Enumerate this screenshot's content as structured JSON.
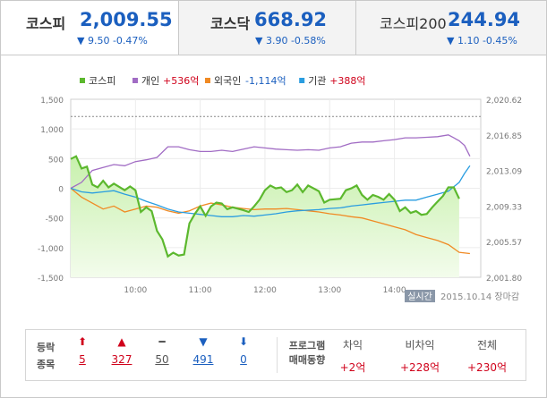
{
  "tabs": [
    {
      "name": "코스피",
      "value": "2,009.55",
      "change": "▼ 9.50 -0.47%"
    },
    {
      "name": "코스닥",
      "value": "668.92",
      "change": "▼ 3.90 -0.58%"
    },
    {
      "name": "코스피200",
      "value": "244.94",
      "change": "▼ 1.10 -0.45%"
    }
  ],
  "legend": [
    {
      "name": "코스피",
      "amount": "",
      "color": "#5cb82e"
    },
    {
      "name": "개인",
      "amount": "+536억",
      "color": "#a16cc4"
    },
    {
      "name": "외국인",
      "amount": "-1,114억",
      "color": "#f08a24"
    },
    {
      "name": "기관",
      "amount": "+388억",
      "color": "#2a9de0"
    }
  ],
  "status": {
    "badge": "실시간",
    "date": "2015.10.14",
    "session": "장마감"
  },
  "updown": {
    "label_line1": "등락",
    "label_line2": "종목",
    "items": [
      {
        "arrow": "⬆",
        "count": "5",
        "color": "#d0021b"
      },
      {
        "arrow": "▲",
        "count": "327",
        "color": "#d0021b"
      },
      {
        "arrow": "━",
        "count": "50",
        "color": "#555"
      },
      {
        "arrow": "▼",
        "count": "491",
        "color": "#1b5fbf"
      },
      {
        "arrow": "⬇",
        "count": "0",
        "color": "#1b5fbf"
      }
    ]
  },
  "program": {
    "label_line1": "프로그램",
    "label_line2": "매매동향",
    "cols": [
      {
        "head": "차익",
        "value": "+2억"
      },
      {
        "head": "비차익",
        "value": "+228억"
      },
      {
        "head": "전체",
        "value": "+230억"
      }
    ]
  },
  "chart_data": {
    "type": "line",
    "x_ticks": [
      "10:00",
      "11:00",
      "12:00",
      "13:00",
      "14:00"
    ],
    "y_left_ticks": [
      "1,500",
      "1,000",
      "500",
      "0",
      "-500",
      "-1,000",
      "-1,500"
    ],
    "y_left_range": [
      -1500,
      1500
    ],
    "y_right_ticks": [
      "2,020.62",
      "2,016.85",
      "2,013.09",
      "2,009.33",
      "2,005.57",
      "2,001.80"
    ],
    "y_right_range": [
      2001.8,
      2020.62
    ],
    "reference_line": 2018.8,
    "x_range_minutes": [
      0,
      380
    ],
    "series": [
      {
        "name": "코스피",
        "axis": "right",
        "points": [
          [
            0,
            2014.3
          ],
          [
            5,
            2014.6
          ],
          [
            10,
            2013.3
          ],
          [
            15,
            2013.5
          ],
          [
            20,
            2011.6
          ],
          [
            25,
            2011.3
          ],
          [
            30,
            2012.0
          ],
          [
            35,
            2011.3
          ],
          [
            40,
            2011.7
          ],
          [
            50,
            2011.0
          ],
          [
            55,
            2011.4
          ],
          [
            60,
            2011.0
          ],
          [
            65,
            2008.7
          ],
          [
            70,
            2009.2
          ],
          [
            75,
            2008.8
          ],
          [
            80,
            2006.7
          ],
          [
            85,
            2005.8
          ],
          [
            90,
            2004.0
          ],
          [
            95,
            2004.4
          ],
          [
            100,
            2004.1
          ],
          [
            105,
            2004.2
          ],
          [
            110,
            2007.5
          ],
          [
            115,
            2008.5
          ],
          [
            120,
            2009.3
          ],
          [
            125,
            2008.3
          ],
          [
            130,
            2009.3
          ],
          [
            135,
            2009.7
          ],
          [
            140,
            2009.6
          ],
          [
            145,
            2009.0
          ],
          [
            150,
            2009.2
          ],
          [
            160,
            2008.9
          ],
          [
            165,
            2008.7
          ],
          [
            170,
            2009.3
          ],
          [
            175,
            2010.0
          ],
          [
            180,
            2011.0
          ],
          [
            185,
            2011.5
          ],
          [
            190,
            2011.2
          ],
          [
            195,
            2011.3
          ],
          [
            200,
            2010.8
          ],
          [
            205,
            2011.0
          ],
          [
            210,
            2011.6
          ],
          [
            215,
            2010.8
          ],
          [
            220,
            2011.5
          ],
          [
            230,
            2010.9
          ],
          [
            235,
            2009.7
          ],
          [
            240,
            2010.0
          ],
          [
            250,
            2010.1
          ],
          [
            255,
            2011.0
          ],
          [
            260,
            2011.2
          ],
          [
            265,
            2011.5
          ],
          [
            270,
            2010.5
          ],
          [
            275,
            2010.0
          ],
          [
            280,
            2010.5
          ],
          [
            285,
            2010.3
          ],
          [
            290,
            2010.0
          ],
          [
            295,
            2010.6
          ],
          [
            300,
            2010.0
          ],
          [
            305,
            2008.8
          ],
          [
            310,
            2009.2
          ],
          [
            315,
            2008.6
          ],
          [
            320,
            2008.8
          ],
          [
            325,
            2008.4
          ],
          [
            330,
            2008.5
          ],
          [
            335,
            2009.2
          ],
          [
            340,
            2009.8
          ],
          [
            345,
            2010.4
          ],
          [
            350,
            2011.3
          ],
          [
            355,
            2011.3
          ],
          [
            360,
            2010.1
          ]
        ]
      },
      {
        "name": "개인",
        "axis": "left",
        "points": [
          [
            0,
            0
          ],
          [
            10,
            100
          ],
          [
            20,
            300
          ],
          [
            30,
            350
          ],
          [
            40,
            400
          ],
          [
            50,
            380
          ],
          [
            60,
            450
          ],
          [
            70,
            480
          ],
          [
            80,
            520
          ],
          [
            90,
            700
          ],
          [
            100,
            700
          ],
          [
            110,
            650
          ],
          [
            120,
            620
          ],
          [
            130,
            620
          ],
          [
            140,
            640
          ],
          [
            150,
            620
          ],
          [
            160,
            660
          ],
          [
            170,
            700
          ],
          [
            180,
            680
          ],
          [
            190,
            660
          ],
          [
            200,
            650
          ],
          [
            210,
            640
          ],
          [
            220,
            650
          ],
          [
            230,
            640
          ],
          [
            240,
            680
          ],
          [
            250,
            700
          ],
          [
            260,
            760
          ],
          [
            270,
            780
          ],
          [
            280,
            780
          ],
          [
            290,
            800
          ],
          [
            300,
            820
          ],
          [
            310,
            850
          ],
          [
            320,
            850
          ],
          [
            330,
            860
          ],
          [
            340,
            870
          ],
          [
            350,
            900
          ],
          [
            355,
            850
          ],
          [
            360,
            800
          ],
          [
            365,
            720
          ],
          [
            370,
            540
          ]
        ]
      },
      {
        "name": "외국인",
        "axis": "left",
        "points": [
          [
            0,
            0
          ],
          [
            10,
            -150
          ],
          [
            20,
            -250
          ],
          [
            30,
            -350
          ],
          [
            40,
            -300
          ],
          [
            50,
            -400
          ],
          [
            60,
            -350
          ],
          [
            70,
            -300
          ],
          [
            80,
            -320
          ],
          [
            90,
            -380
          ],
          [
            100,
            -420
          ],
          [
            110,
            -380
          ],
          [
            120,
            -300
          ],
          [
            130,
            -250
          ],
          [
            140,
            -280
          ],
          [
            150,
            -320
          ],
          [
            160,
            -340
          ],
          [
            170,
            -360
          ],
          [
            180,
            -350
          ],
          [
            190,
            -350
          ],
          [
            200,
            -340
          ],
          [
            210,
            -360
          ],
          [
            220,
            -380
          ],
          [
            230,
            -400
          ],
          [
            240,
            -430
          ],
          [
            250,
            -450
          ],
          [
            260,
            -480
          ],
          [
            270,
            -500
          ],
          [
            280,
            -550
          ],
          [
            290,
            -600
          ],
          [
            300,
            -650
          ],
          [
            310,
            -700
          ],
          [
            320,
            -780
          ],
          [
            330,
            -830
          ],
          [
            340,
            -880
          ],
          [
            350,
            -950
          ],
          [
            360,
            -1080
          ],
          [
            370,
            -1100
          ]
        ]
      },
      {
        "name": "기관",
        "axis": "left",
        "points": [
          [
            0,
            0
          ],
          [
            10,
            -60
          ],
          [
            20,
            -80
          ],
          [
            30,
            -60
          ],
          [
            40,
            -40
          ],
          [
            50,
            -100
          ],
          [
            60,
            -150
          ],
          [
            70,
            -220
          ],
          [
            80,
            -280
          ],
          [
            90,
            -350
          ],
          [
            100,
            -400
          ],
          [
            110,
            -420
          ],
          [
            120,
            -440
          ],
          [
            130,
            -460
          ],
          [
            140,
            -480
          ],
          [
            150,
            -480
          ],
          [
            160,
            -460
          ],
          [
            170,
            -470
          ],
          [
            180,
            -450
          ],
          [
            190,
            -430
          ],
          [
            200,
            -400
          ],
          [
            210,
            -380
          ],
          [
            220,
            -370
          ],
          [
            230,
            -360
          ],
          [
            240,
            -340
          ],
          [
            250,
            -330
          ],
          [
            260,
            -300
          ],
          [
            270,
            -280
          ],
          [
            280,
            -260
          ],
          [
            290,
            -240
          ],
          [
            300,
            -220
          ],
          [
            310,
            -200
          ],
          [
            320,
            -200
          ],
          [
            330,
            -150
          ],
          [
            340,
            -100
          ],
          [
            350,
            -50
          ],
          [
            360,
            100
          ],
          [
            365,
            250
          ],
          [
            370,
            380
          ]
        ]
      }
    ]
  }
}
